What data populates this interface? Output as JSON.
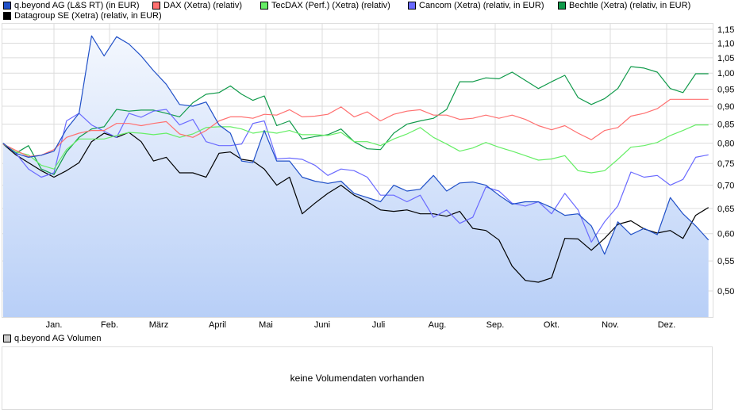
{
  "chart_data": {
    "type": "line",
    "yscale": "log",
    "ylim": [
      0.46,
      1.17
    ],
    "yticks": [
      "1,15",
      "1,10",
      "1,05",
      "1,00",
      "0,95",
      "0,90",
      "0,85",
      "0,80",
      "0,75",
      "0,70",
      "0,65",
      "0,60",
      "0,55",
      "0,50"
    ],
    "xticks": [
      "Jan.",
      "Feb.",
      "März",
      "April",
      "Mai",
      "Juni",
      "Juli",
      "Aug.",
      "Sep.",
      "Okt.",
      "Nov.",
      "Dez."
    ],
    "grid": true,
    "legend_placement": "top",
    "x": [
      "04.12.",
      "11.12.",
      "18.12.",
      "25.12.",
      "01.01.",
      "08.01.",
      "15.01.",
      "22.01.",
      "29.01.",
      "05.02.",
      "12.02.",
      "19.02.",
      "26.02.",
      "05.03.",
      "12.03.",
      "19.03.",
      "26.03.",
      "02.04.",
      "09.04.",
      "16.04.",
      "23.04.",
      "30.04.",
      "07.05.",
      "14.05.",
      "21.05.",
      "28.05.",
      "04.06.",
      "11.06.",
      "18.06.",
      "25.06.",
      "02.07.",
      "09.07.",
      "16.07.",
      "23.07.",
      "30.07.",
      "06.08.",
      "13.08.",
      "20.08.",
      "27.08.",
      "03.09.",
      "10.09.",
      "17.09.",
      "24.09.",
      "01.10.",
      "08.10.",
      "15.10.",
      "22.10.",
      "29.10.",
      "05.11.",
      "12.11.",
      "19.11.",
      "26.11.",
      "03.12.",
      "10.12.",
      "17.12.",
      "24.12."
    ],
    "series": [
      {
        "name": "q.beyond AG (L&S RT) (in EUR)",
        "color": "#2050c8",
        "filled": true,
        "values": [
          0.8,
          0.775,
          0.765,
          0.77,
          0.78,
          0.837,
          0.88,
          1.126,
          1.056,
          1.123,
          1.097,
          1.056,
          1.008,
          0.965,
          0.905,
          0.9,
          0.912,
          0.848,
          0.826,
          0.756,
          0.752,
          0.833,
          0.756,
          0.756,
          0.718,
          0.709,
          0.704,
          0.709,
          0.682,
          0.673,
          0.664,
          0.7,
          0.687,
          0.691,
          0.722,
          0.687,
          0.705,
          0.707,
          0.7,
          0.678,
          0.659,
          0.664,
          0.664,
          0.652,
          0.636,
          0.639,
          0.615,
          0.562,
          0.623,
          0.598,
          0.61,
          0.598,
          0.673,
          0.639,
          0.615,
          0.588
        ]
      },
      {
        "name": "DAX (Xetra) (relativ)",
        "color": "#ff7070",
        "values": [
          0.798,
          0.782,
          0.767,
          0.77,
          0.784,
          0.815,
          0.826,
          0.833,
          0.833,
          0.852,
          0.852,
          0.846,
          0.852,
          0.857,
          0.824,
          0.815,
          0.833,
          0.859,
          0.87,
          0.87,
          0.866,
          0.877,
          0.875,
          0.89,
          0.87,
          0.872,
          0.877,
          0.898,
          0.87,
          0.884,
          0.859,
          0.877,
          0.886,
          0.89,
          0.875,
          0.875,
          0.863,
          0.866,
          0.875,
          0.866,
          0.875,
          0.863,
          0.846,
          0.835,
          0.846,
          0.826,
          0.809,
          0.833,
          0.841,
          0.872,
          0.88,
          0.893,
          0.92,
          0.92,
          0.92,
          0.92
        ]
      },
      {
        "name": "TecDAX (Perf.) (Xetra) (relativ)",
        "color": "#66ee66",
        "values": [
          0.798,
          0.778,
          0.771,
          0.746,
          0.737,
          0.784,
          0.811,
          0.811,
          0.811,
          0.82,
          0.828,
          0.826,
          0.822,
          0.826,
          0.815,
          0.824,
          0.841,
          0.843,
          0.843,
          0.837,
          0.826,
          0.831,
          0.826,
          0.833,
          0.822,
          0.822,
          0.82,
          0.828,
          0.804,
          0.804,
          0.794,
          0.811,
          0.824,
          0.841,
          0.815,
          0.798,
          0.78,
          0.788,
          0.802,
          0.79,
          0.78,
          0.769,
          0.758,
          0.761,
          0.769,
          0.733,
          0.728,
          0.733,
          0.76,
          0.79,
          0.794,
          0.802,
          0.82,
          0.833,
          0.848,
          0.848
        ]
      },
      {
        "name": "Cancom (Xetra) (relativ, in EUR)",
        "color": "#6a6aff",
        "values": [
          0.8,
          0.775,
          0.737,
          0.718,
          0.728,
          0.859,
          0.88,
          0.848,
          0.831,
          0.815,
          0.88,
          0.869,
          0.886,
          0.891,
          0.848,
          0.863,
          0.804,
          0.794,
          0.794,
          0.798,
          0.852,
          0.859,
          0.761,
          0.763,
          0.76,
          0.746,
          0.722,
          0.737,
          0.733,
          0.718,
          0.678,
          0.678,
          0.664,
          0.678,
          0.632,
          0.647,
          0.62,
          0.632,
          0.696,
          0.687,
          0.661,
          0.655,
          0.664,
          0.639,
          0.682,
          0.647,
          0.584,
          0.623,
          0.655,
          0.73,
          0.718,
          0.722,
          0.7,
          0.713,
          0.765,
          0.771
        ]
      },
      {
        "name": "Bechtle (Xetra) (relativ, in EUR)",
        "color": "#109a4a",
        "values": [
          0.8,
          0.775,
          0.794,
          0.737,
          0.724,
          0.778,
          0.815,
          0.837,
          0.843,
          0.891,
          0.886,
          0.889,
          0.889,
          0.88,
          0.87,
          0.91,
          0.935,
          0.94,
          0.96,
          0.935,
          0.917,
          0.93,
          0.846,
          0.859,
          0.811,
          0.817,
          0.822,
          0.837,
          0.804,
          0.786,
          0.784,
          0.826,
          0.85,
          0.859,
          0.866,
          0.891,
          0.973,
          0.973,
          0.985,
          0.982,
          1.003,
          0.977,
          0.952,
          0.973,
          0.993,
          0.925,
          0.905,
          0.922,
          0.952,
          1.021,
          1.016,
          1.003,
          0.952,
          0.94,
          0.998,
          0.998
        ]
      },
      {
        "name": "Datagroup SE (Xetra) (relativ, in EUR)",
        "color": "#000000",
        "values": [
          0.798,
          0.771,
          0.752,
          0.733,
          0.718,
          0.733,
          0.752,
          0.804,
          0.826,
          0.815,
          0.828,
          0.804,
          0.756,
          0.765,
          0.728,
          0.728,
          0.718,
          0.775,
          0.778,
          0.76,
          0.756,
          0.737,
          0.7,
          0.718,
          0.639,
          0.661,
          0.682,
          0.7,
          0.678,
          0.664,
          0.647,
          0.644,
          0.647,
          0.639,
          0.639,
          0.634,
          0.644,
          0.61,
          0.606,
          0.588,
          0.541,
          0.517,
          0.514,
          0.521,
          0.591,
          0.59,
          0.569,
          0.591,
          0.618,
          0.625,
          0.609,
          0.601,
          0.606,
          0.591,
          0.636,
          0.652
        ]
      }
    ]
  },
  "volume": {
    "legend": "q.beyond AG Volumen",
    "legend_color": "#cccccc",
    "empty_message": "keine Volumendaten vorhanden"
  }
}
